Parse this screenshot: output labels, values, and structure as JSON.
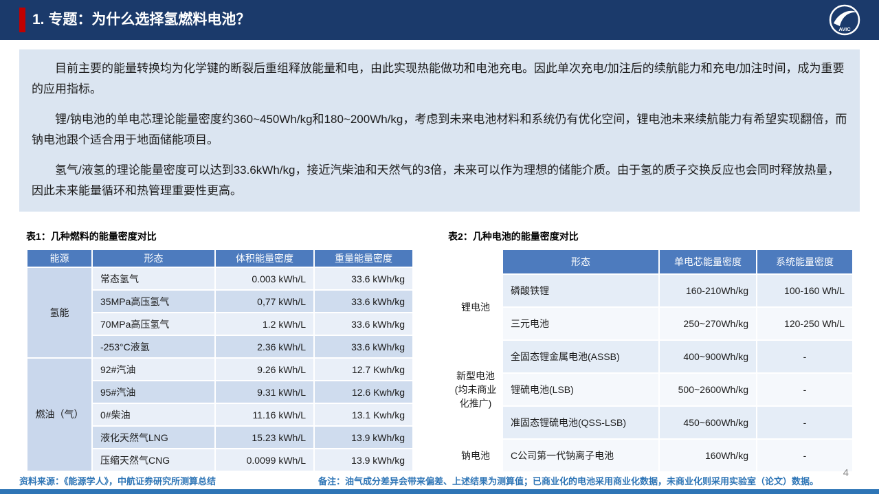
{
  "header": {
    "title": "1. 专题：为什么选择氢燃料电池？",
    "logo_text": "AVIC"
  },
  "summary": {
    "paragraphs": [
      "目前主要的能量转换均为化学键的断裂后重组释放能量和电，由此实现热能做功和电池充电。因此单次充电/加注后的续航能力和充电/加注时间，成为重要的应用指标。",
      "锂/钠电池的单电芯理论能量密度约360~450Wh/kg和180~200Wh/kg，考虑到未来电池材料和系统仍有优化空间，锂电池未来续航能力有希望实现翻倍，而钠电池跟个适合用于地面储能项目。",
      "氢气/液氢的理论能量密度可以达到33.6kWh/kg，接近汽柴油和天然气的3倍，未来可以作为理想的储能介质。由于氢的质子交换反应也会同时释放热量，因此未来能量循环和热管理重要性更高。"
    ]
  },
  "tables": [
    {
      "caption": "表1：几种燃料的能量密度对比",
      "headers": [
        "能源",
        "形态",
        "体积能量密度",
        "重量能量密度"
      ],
      "groups": [
        {
          "label": "氢能",
          "rows": [
            [
              "常态氢气",
              "0.003 kWh/L",
              "33.6 kWh/kg"
            ],
            [
              "35MPa高压氢气",
              "0,77 kWh/L",
              "33.6 kWh/kg"
            ],
            [
              "70MPa高压氢气",
              "1.2 kWh/L",
              "33.6 kWh/kg"
            ],
            [
              "-253°C液氢",
              "2.36 kWh/L",
              "33.6 kWh/kg"
            ]
          ]
        },
        {
          "label": "燃油（气）",
          "rows": [
            [
              "92#汽油",
              "9.26 kWh/L",
              "12.7 Kwh/kg"
            ],
            [
              "95#汽油",
              "9.31 kWh/L",
              "12.6 Kwh/kg"
            ],
            [
              "0#柴油",
              "11.16 kWh/L",
              "13.1 Kwh/kg"
            ],
            [
              "液化天然气LNG",
              "15.23 kWh/L",
              "13.9 kWh/kg"
            ],
            [
              "压缩天然气CNG",
              "0.0099 kWh/L",
              "13.9 kWh/kg"
            ]
          ]
        }
      ]
    },
    {
      "caption": "表2：几种电池的能量密度对比",
      "headers": [
        "",
        "形态",
        "单电芯能量密度",
        "系统能量密度"
      ],
      "groups": [
        {
          "label": "锂电池",
          "rows": [
            [
              "磷酸铁锂",
              "160-210Wh/kg",
              "100-160 Wh/L"
            ],
            [
              "三元电池",
              "250~270Wh/kg",
              "120-250 Wh/L"
            ]
          ]
        },
        {
          "label": "新型电池(均未商业化推广)",
          "rows": [
            [
              "全固态锂金属电池(ASSB)",
              "400~900Wh/kg",
              "-"
            ],
            [
              "锂硫电池(LSB)",
              "500~2600Wh/kg",
              "-"
            ],
            [
              "准固态锂硫电池(QSS-LSB)",
              "450~600Wh/kg",
              "-"
            ]
          ]
        },
        {
          "label": "钠电池",
          "rows": [
            [
              "C公司第一代钠离子电池",
              "160Wh/kg",
              "-"
            ]
          ]
        }
      ]
    }
  ],
  "footer": {
    "source": "资料来源：《能源学人》，中航证券研究所测算总结",
    "note": "备注：油气成分差异会带来偏差、上述结果为测算值；已商业化的电池采用商业化数据，未商业化则采用实验室（论文）数据。",
    "page_number": "4"
  },
  "colors": {
    "header_navy": "#1b3a6b",
    "accent_red": "#c00000",
    "summary_bg": "#dbe5f1",
    "table_header_blue": "#4d7bbe",
    "footer_blue": "#2e75b6"
  }
}
